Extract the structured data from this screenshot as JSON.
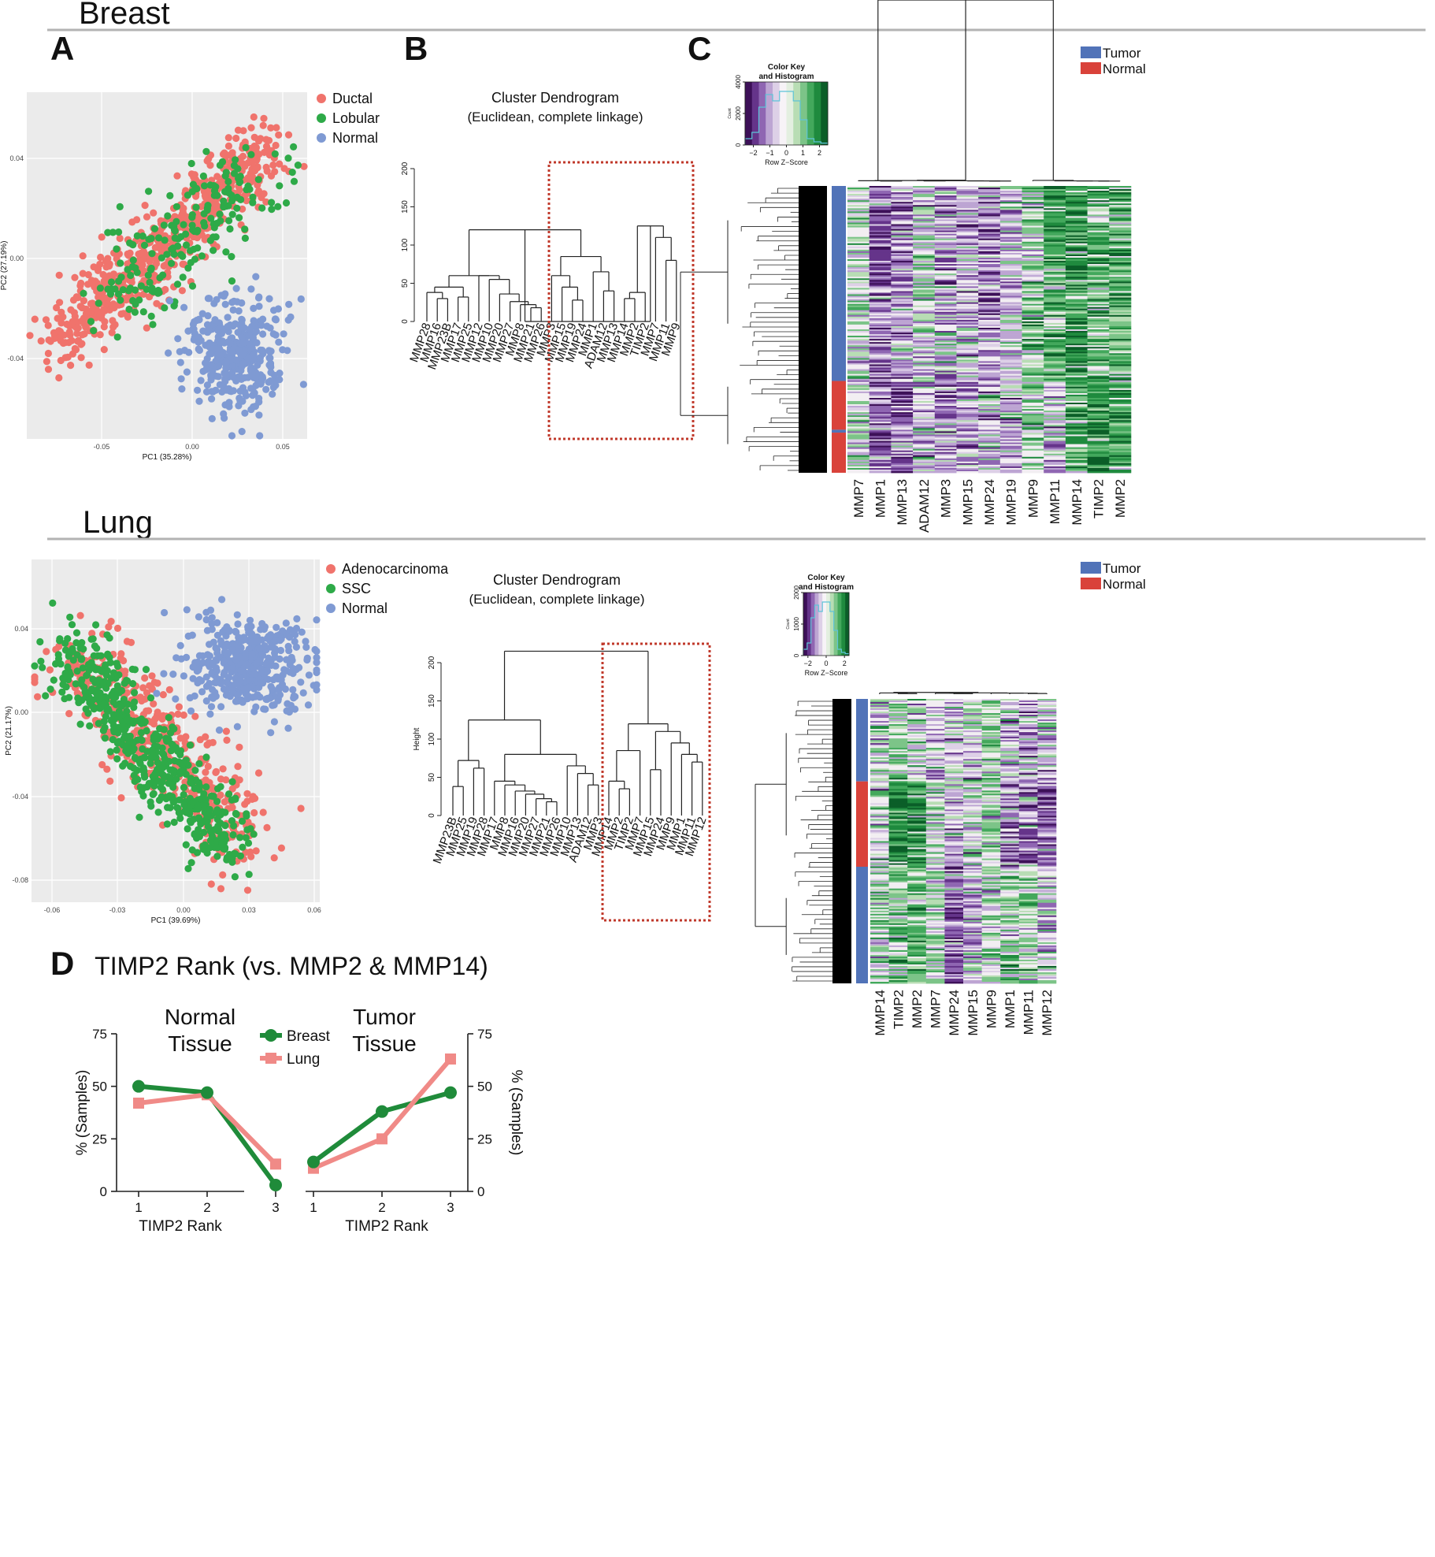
{
  "sections": {
    "breast": "Breast",
    "lung": "Lung"
  },
  "panel_labels": {
    "a": "A",
    "b": "B",
    "c": "C",
    "d": "D"
  },
  "colors": {
    "ductal": "#f0736c",
    "lobular": "#2eaa48",
    "normal_pca": "#7f9ad3",
    "adeno": "#f0736c",
    "ssc": "#2eaa48",
    "tumor": "#5173b8",
    "normal_bar": "#d9423a",
    "breast_line": "#1f8b3a",
    "lung_line": "#f08a87",
    "dendro_box": "#c0392b",
    "plot_bg": "#ebebeb"
  },
  "breast": {
    "pca": {
      "xlabel": "PC1 (35.28%)",
      "ylabel": "PC2 (27.19%)",
      "xticks": [
        "-0.05",
        "0.00",
        "0.05"
      ],
      "yticks": [
        "0.04",
        "0.00",
        "-0.04"
      ],
      "legend": [
        "Ductal",
        "Lobular",
        "Normal"
      ]
    },
    "dendrogram": {
      "title": "Cluster Dendrogram",
      "subtitle": "(Euclidean, complete linkage)",
      "yticks": [
        "200",
        "150",
        "100",
        "50",
        "0"
      ],
      "leaves": [
        "MMP28",
        "MMP16",
        "MMP23B",
        "MMP17",
        "MMP25",
        "MMP12",
        "MMP10",
        "MMP20",
        "MMP27",
        "MMP8",
        "MMP21",
        "MMP26",
        "MMP3",
        "MMP15",
        "MMP19",
        "MMP24",
        "MMP1",
        "ADAM12",
        "MMP13",
        "MMP14",
        "MMP2",
        "TIMP2",
        "MMP7",
        "MMP11",
        "MMP9"
      ]
    },
    "heatmap": {
      "key_title": [
        "Color Key",
        "and Histogram"
      ],
      "key_yticks": [
        "4000",
        "2000",
        "0"
      ],
      "key_ylabel": "Count",
      "key_xticks": [
        "−2",
        "−1",
        "0",
        "1",
        "2"
      ],
      "key_xlabel": "Row Z−Score",
      "legend": [
        "Tumor",
        "Normal"
      ],
      "columns": [
        "MMP7",
        "MMP1",
        "MMP13",
        "ADAM12",
        "MMP3",
        "MMP15",
        "MMP24",
        "MMP19",
        "MMP9",
        "MMP11",
        "MMP14",
        "TIMP2",
        "MMP2"
      ]
    }
  },
  "lung": {
    "pca": {
      "xlabel": "PC1 (39.69%)",
      "ylabel": "PC2 (21.17%)",
      "xticks": [
        "-0.06",
        "-0.03",
        "0.00",
        "0.03",
        "0.06"
      ],
      "yticks": [
        "0.04",
        "0.00",
        "-0.04",
        "-0.08"
      ],
      "legend": [
        "Adenocarcinoma",
        "SSC",
        "Normal"
      ]
    },
    "dendrogram": {
      "title": "Cluster Dendrogram",
      "subtitle": "(Euclidean, complete linkage)",
      "ylabel": "Height",
      "yticks": [
        "200",
        "150",
        "100",
        "50",
        "0"
      ],
      "leaves": [
        "MMP23B",
        "MMP25",
        "MMP19",
        "MMP28",
        "MMP17",
        "MMP8",
        "MMP16",
        "MMP20",
        "MMP27",
        "MMP21",
        "MMP26",
        "MMP10",
        "MMP13",
        "ADAM12",
        "MMP3",
        "MMP14",
        "MMP2",
        "TIMP2",
        "MMP7",
        "MMP15",
        "MMP24",
        "MMP9",
        "MMP1",
        "MMP11",
        "MMP12"
      ]
    },
    "heatmap": {
      "key_title": [
        "Color Key",
        "and Histogram"
      ],
      "key_yticks": [
        "2000",
        "1000",
        "0"
      ],
      "key_ylabel": "Count",
      "key_xticks": [
        "−2",
        "0",
        "2"
      ],
      "key_xlabel": "Row Z−Score",
      "legend": [
        "Tumor",
        "Normal"
      ],
      "columns": [
        "MMP14",
        "TIMP2",
        "MMP2",
        "MMP7",
        "MMP24",
        "MMP15",
        "MMP9",
        "MMP1",
        "MMP11",
        "MMP12"
      ]
    }
  },
  "chart_data": [
    {
      "type": "line",
      "id": "normal-tissue",
      "title": "TIMP2 Rank (vs. MMP2 & MMP14)",
      "subtitle": [
        "Normal",
        "Tissue"
      ],
      "xlabel": "TIMP2 Rank",
      "ylabel": "% (Samples)",
      "categories": [
        "1",
        "2",
        "3"
      ],
      "ylim": [
        0,
        75
      ],
      "yticks": [
        "0",
        "25",
        "50",
        "75"
      ],
      "series": [
        {
          "name": "Breast",
          "values": [
            50,
            47,
            3
          ]
        },
        {
          "name": "Lung",
          "values": [
            42,
            46,
            13
          ]
        }
      ],
      "legend": [
        "Breast",
        "Lung"
      ]
    },
    {
      "type": "line",
      "id": "tumor-tissue",
      "subtitle": [
        "Tumor",
        "Tissue"
      ],
      "xlabel": "TIMP2 Rank",
      "ylabel": "% (Samples)",
      "categories": [
        "1",
        "2",
        "3"
      ],
      "ylim": [
        0,
        75
      ],
      "yticks": [
        "0",
        "25",
        "50",
        "75"
      ],
      "series": [
        {
          "name": "Breast",
          "values": [
            14,
            38,
            47
          ]
        },
        {
          "name": "Lung",
          "values": [
            11,
            25,
            63
          ]
        }
      ]
    }
  ]
}
